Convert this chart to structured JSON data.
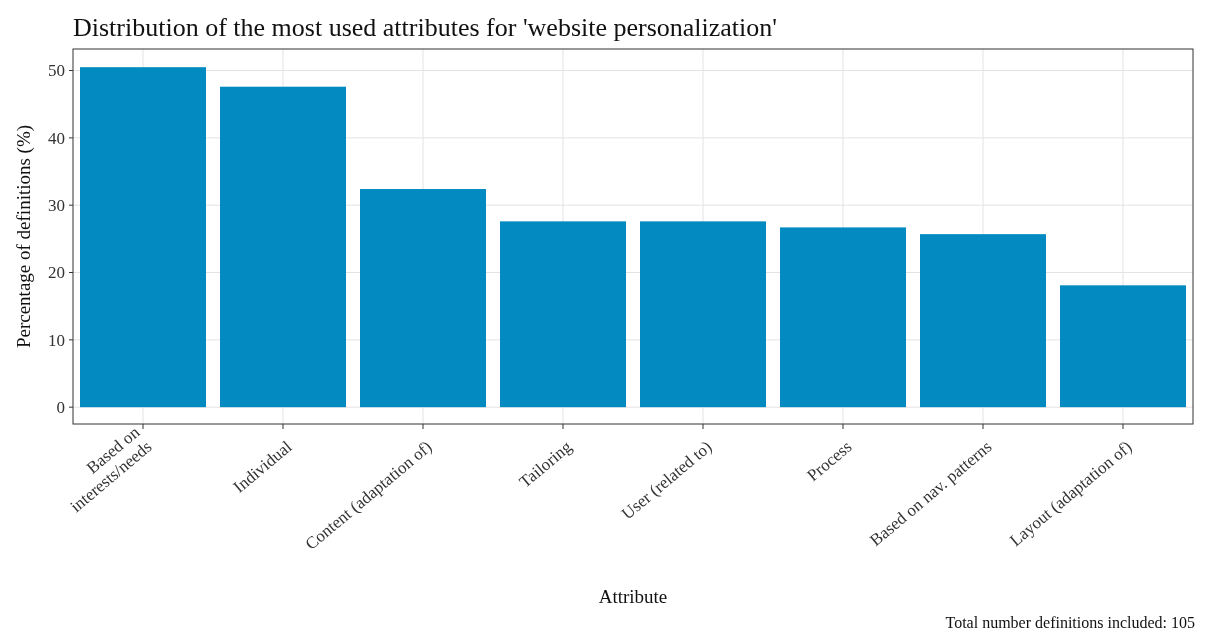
{
  "chart_data": {
    "type": "bar",
    "title": "Distribution of the most used attributes for 'website personalization'",
    "xlabel": "Attribute",
    "ylabel": "Percentage of definitions (%)",
    "categories": [
      "Based on\ninterests/needs",
      "Individual",
      "Content (adaptation of)",
      "Tailoring",
      "User (related to)",
      "Process",
      "Based on nav. patterns",
      "Layout (adaptation of)"
    ],
    "values": [
      50.5,
      47.6,
      32.4,
      27.6,
      27.6,
      26.7,
      25.7,
      18.1
    ],
    "color": "#038bc1",
    "ylim": [
      -2.5,
      53.2
    ],
    "yticks": [
      0,
      10,
      20,
      30,
      40,
      50
    ],
    "grid": true,
    "annotations": [
      "Total number definitions included: 105"
    ]
  }
}
